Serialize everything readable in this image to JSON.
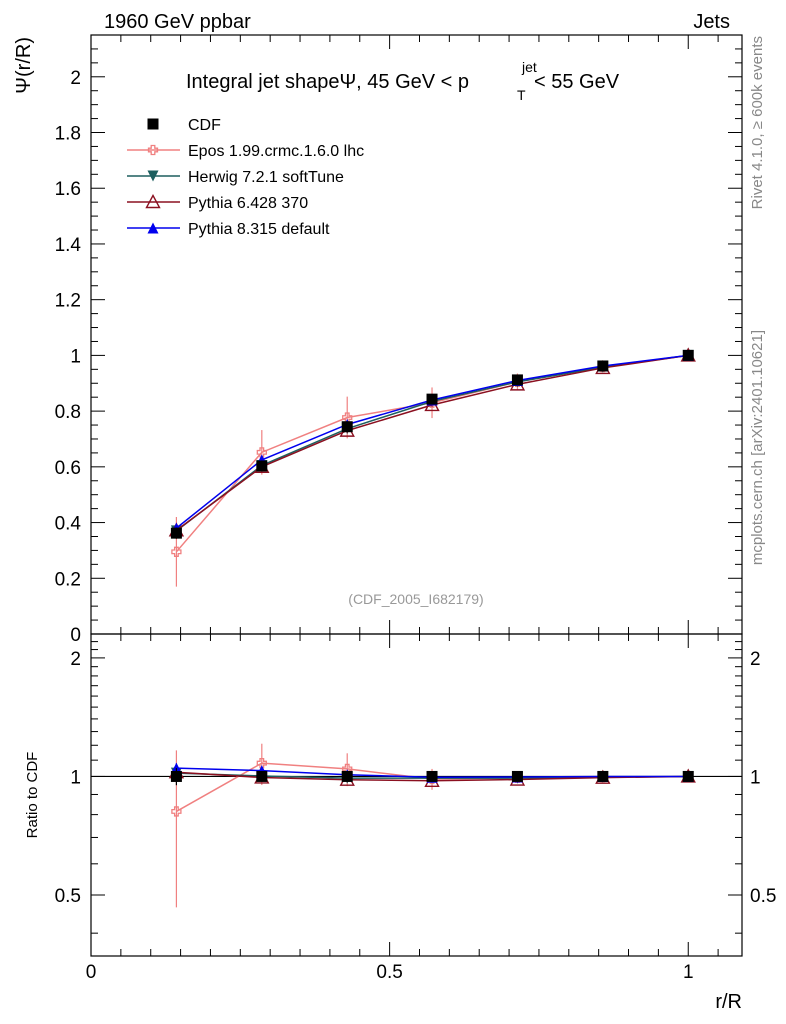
{
  "header": {
    "left": "1960 GeV ppbar",
    "right": "Jets"
  },
  "side_labels": {
    "rivet": "Rivet 4.1.0, ≥ 600k events",
    "mcplots": "mcplots.cern.ch [arXiv:2401.10621]"
  },
  "chart_data": {
    "type": "line",
    "title_parts": {
      "main": "Integral jet shapeΨ, 45 GeV < p",
      "sub": "T",
      "sup": "jet",
      "tail": " < 55 GeV"
    },
    "analysis_id": "(CDF_2005_I682179)",
    "ylabel": "Ψ(r/R)",
    "xlabel": "r/R",
    "ratio_ylabel": "Ratio to CDF",
    "xlim": [
      0,
      1.09
    ],
    "ylim": [
      0,
      2.15
    ],
    "ratio_ylim": [
      0.35,
      2.3
    ],
    "x_ticks": [
      0,
      0.5,
      1
    ],
    "x_tick_labels": [
      "0",
      "0.5",
      "1"
    ],
    "y_ticks": [
      0,
      0.2,
      0.4,
      0.6,
      0.8,
      1,
      1.2,
      1.4,
      1.6,
      1.8,
      2
    ],
    "y_tick_labels": [
      "0",
      "0.2",
      "0.4",
      "0.6",
      "0.8",
      "1",
      "1.2",
      "1.4",
      "1.6",
      "1.8",
      "2"
    ],
    "ratio_ticks": [
      0.5,
      1,
      2
    ],
    "ratio_tick_labels": [
      "0.5",
      "1",
      "2"
    ],
    "x": [
      0.143,
      0.286,
      0.429,
      0.571,
      0.714,
      0.857,
      1.0
    ],
    "series": [
      {
        "name": "CDF",
        "color": "#000000",
        "marker": "square",
        "values": [
          0.362,
          0.603,
          0.744,
          0.843,
          0.912,
          0.962,
          1.0
        ],
        "errors": [
          0.02,
          0.02,
          0.015,
          0.015,
          0.01,
          0.008,
          0.003
        ],
        "ratio": [
          1,
          1,
          1,
          1,
          1,
          1,
          1
        ],
        "ratio_errors": [
          0.05,
          0.03,
          0.02,
          0.018,
          0.012,
          0.008,
          0.003
        ]
      },
      {
        "name": "Epos 1.99.crmc.1.6.0 lhc",
        "color": "#f08080",
        "marker": "cross-open",
        "values": [
          0.295,
          0.652,
          0.777,
          0.83,
          0.905,
          0.958,
          1.0
        ],
        "errors": [
          0.125,
          0.08,
          0.075,
          0.055,
          0.03,
          0.015,
          0.005
        ],
        "ratio": [
          0.815,
          1.081,
          1.045,
          0.985,
          0.992,
          0.996,
          1.0
        ],
        "ratio_errors": [
          0.35,
          0.13,
          0.1,
          0.06,
          0.03,
          0.015,
          0.005
        ]
      },
      {
        "name": "Herwig 7.2.1 softTune",
        "color": "#1d5f5f",
        "marker": "triangle-down",
        "values": [
          0.37,
          0.605,
          0.737,
          0.835,
          0.905,
          0.958,
          1.0
        ],
        "errors": [
          0.012,
          0.01,
          0.008,
          0.007,
          0.005,
          0.004,
          0.002
        ],
        "ratio": [
          1.02,
          1.003,
          0.99,
          0.99,
          0.99,
          0.996,
          1.0
        ],
        "ratio_errors": [
          0.03,
          0.015,
          0.012,
          0.01,
          0.008,
          0.005,
          0.002
        ]
      },
      {
        "name": "Pythia 6.428 370",
        "color": "#8b1020",
        "marker": "triangle-up-open",
        "values": [
          0.372,
          0.6,
          0.73,
          0.822,
          0.896,
          0.955,
          1.0
        ],
        "errors": [
          0.012,
          0.01,
          0.008,
          0.007,
          0.005,
          0.004,
          0.002
        ],
        "ratio": [
          1.025,
          0.994,
          0.981,
          0.975,
          0.982,
          0.993,
          1.0
        ],
        "ratio_errors": [
          0.03,
          0.015,
          0.012,
          0.01,
          0.008,
          0.005,
          0.002
        ]
      },
      {
        "name": "Pythia 8.315 default",
        "color": "#0000ee",
        "marker": "triangle-up",
        "values": [
          0.38,
          0.625,
          0.752,
          0.84,
          0.91,
          0.962,
          1.0
        ],
        "errors": [
          0.012,
          0.01,
          0.008,
          0.007,
          0.005,
          0.004,
          0.002
        ],
        "ratio": [
          1.05,
          1.035,
          1.01,
          0.995,
          0.997,
          1.0,
          1.0
        ],
        "ratio_errors": [
          0.03,
          0.015,
          0.012,
          0.01,
          0.008,
          0.005,
          0.002
        ]
      }
    ]
  }
}
